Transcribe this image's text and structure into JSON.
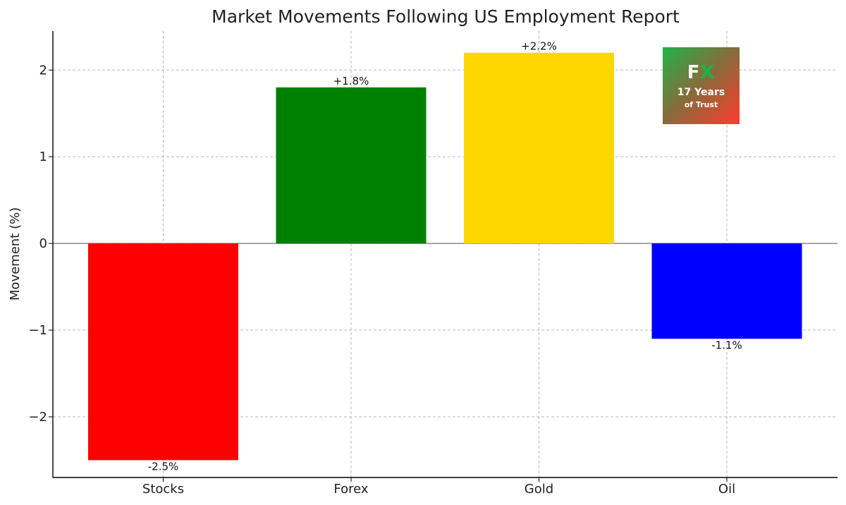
{
  "chart_data": {
    "type": "bar",
    "title": "Market Movements Following US Employment Report",
    "xlabel": "",
    "ylabel": "Movement (%)",
    "categories": [
      "Stocks",
      "Forex",
      "Gold",
      "Oil"
    ],
    "values": [
      -2.5,
      1.8,
      2.2,
      -1.1
    ],
    "data_labels": [
      "-2.5%",
      "+1.8%",
      "+2.2%",
      "-1.1%"
    ],
    "colors": [
      "#ff0000",
      "#008000",
      "#ffd700",
      "#0000ff"
    ],
    "ylim": [
      -2.7,
      2.45
    ],
    "yticks": [
      -2,
      -1,
      0,
      1,
      2
    ],
    "ytick_labels": [
      "−2",
      "−1",
      "0",
      "1",
      "2"
    ],
    "grid": true
  },
  "badge": {
    "logo_part1": "F",
    "logo_part2": "X",
    "line1": "17 Years",
    "line2": "of Trust",
    "gradient": [
      "#1fb24a",
      "#ff3b30"
    ]
  }
}
